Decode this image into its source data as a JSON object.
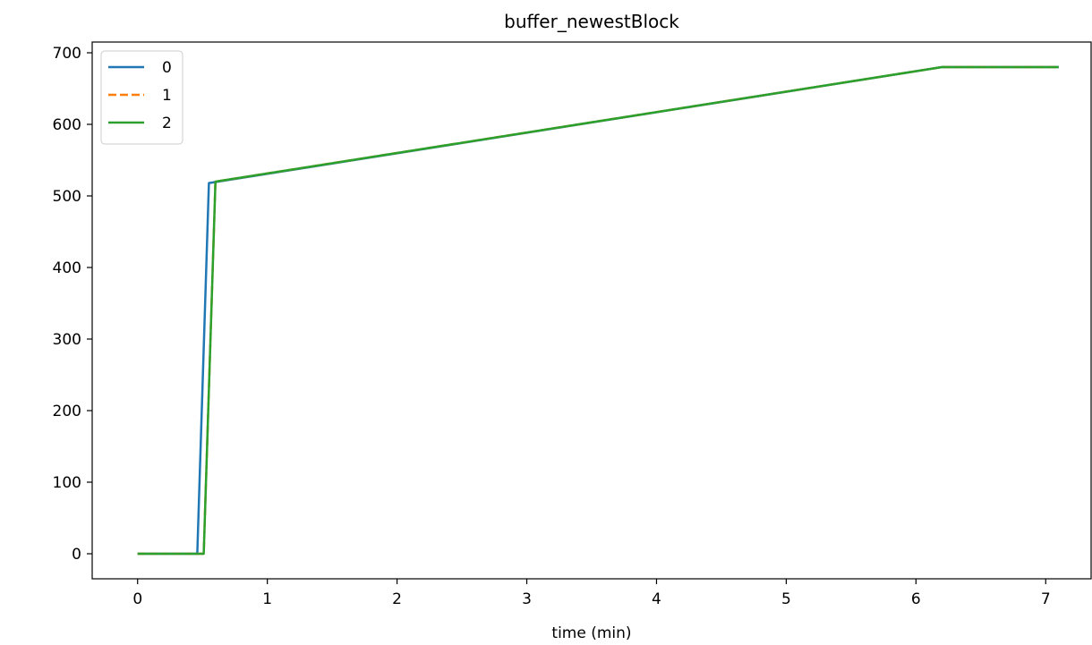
{
  "chart_data": {
    "type": "line",
    "title": "buffer_newestBlock",
    "xlabel": "time (min)",
    "ylabel": "",
    "xlim": [
      -0.35,
      7.35
    ],
    "ylim": [
      -35,
      715
    ],
    "xticks": [
      0,
      1,
      2,
      3,
      4,
      5,
      6,
      7
    ],
    "yticks": [
      0,
      100,
      200,
      300,
      400,
      500,
      600,
      700
    ],
    "grid": false,
    "legend_position": "top-left",
    "series": [
      {
        "name": "0",
        "color": "#1f77b4",
        "dash": "solid",
        "x": [
          0,
          0.46,
          0.55,
          6.2,
          7.1
        ],
        "y": [
          0,
          0,
          518,
          680,
          680
        ]
      },
      {
        "name": "1",
        "color": "#ff7f0e",
        "dash": "dashed",
        "x": [
          0,
          0.51,
          0.6,
          6.2,
          7.1
        ],
        "y": [
          0,
          0,
          520,
          680,
          680
        ]
      },
      {
        "name": "2",
        "color": "#2ca02c",
        "dash": "solid",
        "x": [
          0,
          0.51,
          0.6,
          6.2,
          7.1
        ],
        "y": [
          0,
          0,
          520,
          680,
          680
        ]
      }
    ]
  }
}
